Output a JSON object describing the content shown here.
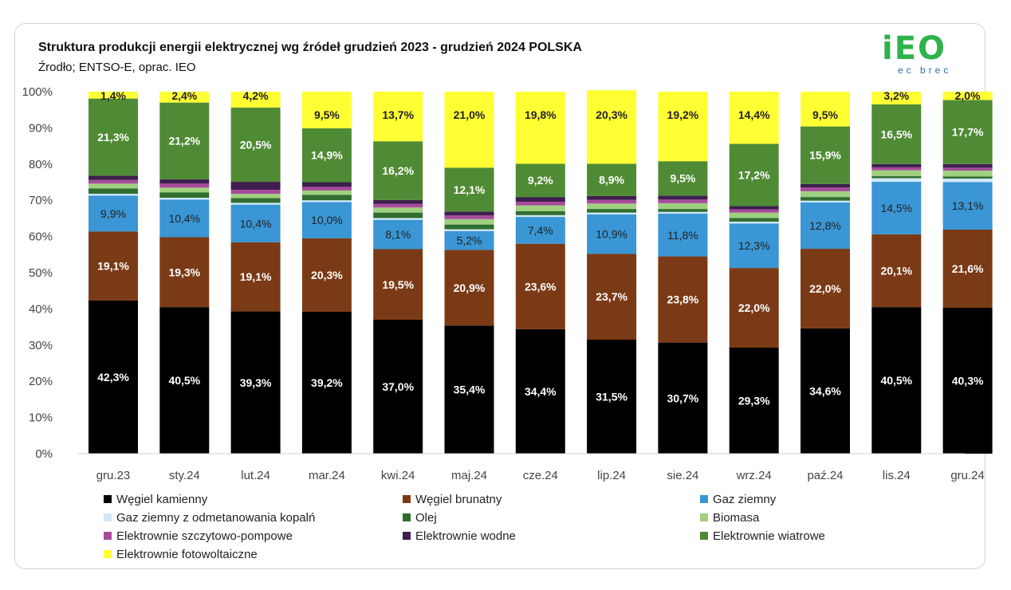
{
  "header": {
    "title": "Struktura produkcji energii elektrycznej wg źródeł grudzień 2023 - grudzień 2024 POLSKA",
    "subtitle": "Źrodło; ENTSO-E, oprac. IEO",
    "logo_text": "iEO",
    "logo_subtext": "ec brec"
  },
  "chart_data": {
    "type": "bar",
    "stacked": true,
    "title": "Struktura produkcji energii elektrycznej wg źródeł grudzień 2023 - grudzień 2024 POLSKA",
    "subtitle": "Źrodło; ENTSO-E, oprac. IEO",
    "xlabel": "",
    "ylabel": "",
    "ylim": [
      0,
      100
    ],
    "y_ticks": [
      "0%",
      "10%",
      "20%",
      "30%",
      "40%",
      "50%",
      "60%",
      "70%",
      "80%",
      "90%",
      "100%"
    ],
    "grid": false,
    "legend_position": "bottom",
    "categories": [
      "gru.23",
      "sty.24",
      "lut.24",
      "mar.24",
      "kwi.24",
      "maj.24",
      "cze.24",
      "lip.24",
      "sie.24",
      "wrz.24",
      "paź.24",
      "lis.24",
      "gru.24"
    ],
    "series": [
      {
        "name": "Węgiel kamienny",
        "color": "#000000",
        "label_color": "#ffffff",
        "values": [
          42.3,
          40.5,
          39.3,
          39.2,
          37.0,
          35.4,
          34.4,
          31.5,
          30.7,
          29.3,
          34.6,
          40.5,
          40.3
        ],
        "labels": [
          "42,3%",
          "40,5%",
          "39,3%",
          "39,2%",
          "37,0%",
          "35,4%",
          "34,4%",
          "31,5%",
          "30,7%",
          "29,3%",
          "34,6%",
          "40,5%",
          "40,3%"
        ]
      },
      {
        "name": "Węgiel brunatny",
        "color": "#7b3a16",
        "label_color": "#ffffff",
        "values": [
          19.1,
          19.3,
          19.1,
          20.3,
          19.5,
          20.9,
          23.6,
          23.7,
          23.8,
          22.0,
          22.0,
          20.1,
          21.6
        ],
        "labels": [
          "19,1%",
          "19,3%",
          "19,1%",
          "20,3%",
          "19,5%",
          "20,9%",
          "23,6%",
          "23,7%",
          "23,8%",
          "22,0%",
          "22,0%",
          "20,1%",
          "21,6%"
        ]
      },
      {
        "name": "Gaz ziemny",
        "color": "#3a96d4",
        "label_color": "#222222",
        "values": [
          9.9,
          10.4,
          10.4,
          10.0,
          8.1,
          5.2,
          7.4,
          10.9,
          11.8,
          12.3,
          12.8,
          14.5,
          13.1
        ],
        "labels": [
          "9,9%",
          "10,4%",
          "10,4%",
          "10,0%",
          "8,1%",
          "5,2%",
          "7,4%",
          "10,9%",
          "11,8%",
          "12,3%",
          "12,8%",
          "14,5%",
          "13,1%"
        ]
      },
      {
        "name": "Gaz ziemny z odmetanowania kopalń",
        "color": "#cfe7f7",
        "values": [
          0.5,
          0.5,
          0.5,
          0.5,
          0.5,
          0.5,
          0.5,
          0.5,
          0.5,
          0.5,
          0.5,
          1.0,
          1.0
        ]
      },
      {
        "name": "Olej",
        "color": "#2f6e2f",
        "values": [
          1.5,
          1.5,
          1.3,
          1.5,
          1.5,
          1.3,
          1.1,
          1.0,
          0.8,
          1.0,
          1.0,
          0.6,
          0.6
        ]
      },
      {
        "name": "Biomasa",
        "color": "#9fd07f",
        "values": [
          1.3,
          1.3,
          1.2,
          1.2,
          1.4,
          1.5,
          1.6,
          1.5,
          1.6,
          1.5,
          1.6,
          1.6,
          1.6
        ]
      },
      {
        "name": "Elektrownie szczytowo-pompowe",
        "color": "#a84a9c",
        "values": [
          1.0,
          1.1,
          1.1,
          1.0,
          1.0,
          1.0,
          1.0,
          1.0,
          1.0,
          0.9,
          1.0,
          0.8,
          0.8
        ]
      },
      {
        "name": "Elektrownie wodne",
        "color": "#3d1f4d",
        "values": [
          1.2,
          1.2,
          2.2,
          1.3,
          1.1,
          1.1,
          1.3,
          1.1,
          1.1,
          0.9,
          1.0,
          0.9,
          1.0
        ]
      },
      {
        "name": "Elektrownie wiatrowe",
        "color": "#4f8b34",
        "label_color": "#ffffff",
        "values": [
          21.3,
          21.2,
          20.5,
          14.9,
          16.2,
          12.1,
          9.2,
          8.9,
          9.5,
          17.2,
          15.9,
          16.5,
          17.7
        ],
        "labels": [
          "21,3%",
          "21,2%",
          "20,5%",
          "14,9%",
          "16,2%",
          "12,1%",
          "9,2%",
          "8,9%",
          "9,5%",
          "17,2%",
          "15,9%",
          "16,5%",
          "17,7%"
        ]
      },
      {
        "name": "Elektrownie fotowoltaiczne",
        "color": "#ffff33",
        "label_color": "#222222",
        "values": [
          1.4,
          2.4,
          4.2,
          9.5,
          13.7,
          21.0,
          19.8,
          20.3,
          19.2,
          14.4,
          9.5,
          3.2,
          2.0
        ],
        "labels": [
          "1,4%",
          "2,4%",
          "4,2%",
          "9,5%",
          "13,7%",
          "21,0%",
          "19,8%",
          "20,3%",
          "19,2%",
          "14,4%",
          "9,5%",
          "3,2%",
          "2,0%"
        ]
      }
    ]
  }
}
